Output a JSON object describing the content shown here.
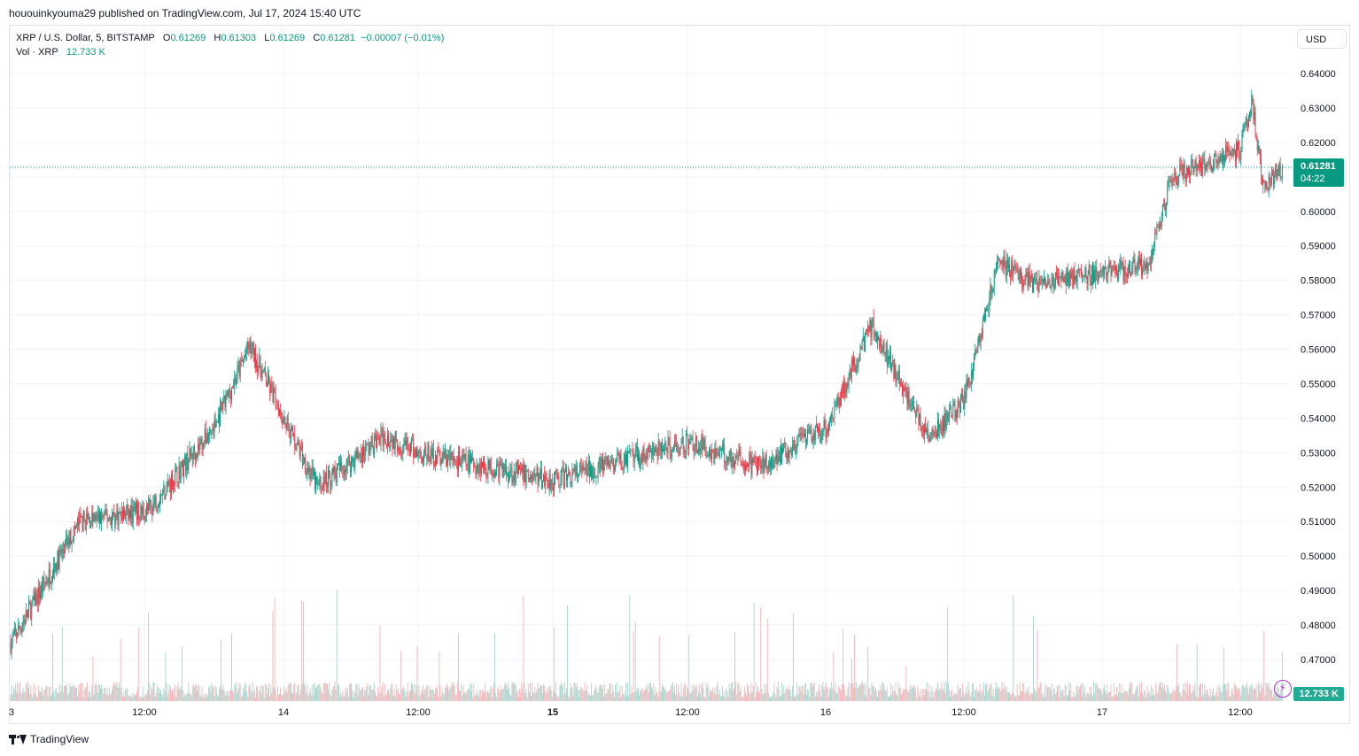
{
  "header": {
    "published_line": "hououinkyouma29 published on TradingView.com, Jul 17, 2024 15:40 UTC"
  },
  "legend": {
    "symbol": "XRP / U.S. Dollar, 5, BITSTAMP",
    "open_label": "O",
    "open_value": "0.61269",
    "high_label": "H",
    "high_value": "0.61303",
    "low_label": "L",
    "low_value": "0.61269",
    "close_label": "C",
    "close_value": "0.61281",
    "change": "−0.00007 (−0.01%)",
    "volume_label": "Vol · XRP",
    "volume_value": "12.733 K"
  },
  "currency_button": "USD",
  "last_price": {
    "value": "0.61281",
    "countdown": "04:22"
  },
  "volume_tag": "12.733 K",
  "footer": {
    "brand": "TradingView"
  },
  "colors": {
    "up": "#089981",
    "down": "#f23645",
    "up_vol": "#a8d5cd",
    "down_vol": "#f7b5b9",
    "grid": "#f0f3fa"
  },
  "chart_data": {
    "type": "candlestick",
    "title": "XRP / U.S. Dollar, 5, BITSTAMP",
    "interval": "5",
    "exchange": "BITSTAMP",
    "xlabel": "",
    "ylabel": "USD",
    "ylim": [
      0.46,
      0.645
    ],
    "y_ticks": [
      "0.64000",
      "0.63000",
      "0.62000",
      "0.61000",
      "0.60000",
      "0.59000",
      "0.58000",
      "0.57000",
      "0.56000",
      "0.55000",
      "0.54000",
      "0.53000",
      "0.52000",
      "0.51000",
      "0.50000",
      "0.49000",
      "0.48000",
      "0.47000"
    ],
    "x_ticks": [
      "3",
      "12:00",
      "14",
      "12:00",
      "15",
      "12:00",
      "16",
      "12:00",
      "17",
      "12:00"
    ],
    "x_ticks_bold": [
      "15"
    ],
    "last_price": 0.61281,
    "price_path_approx": [
      {
        "t": "Jul 13 00:00",
        "p": 0.475
      },
      {
        "t": "Jul 13 06:00",
        "p": 0.51
      },
      {
        "t": "Jul 13 12:00",
        "p": 0.513
      },
      {
        "t": "Jul 13 18:00",
        "p": 0.538
      },
      {
        "t": "Jul 13 21:00",
        "p": 0.561
      },
      {
        "t": "Jul 14 03:00",
        "p": 0.52
      },
      {
        "t": "Jul 14 09:00",
        "p": 0.535
      },
      {
        "t": "Jul 14 12:00",
        "p": 0.53
      },
      {
        "t": "Jul 15 00:00",
        "p": 0.522
      },
      {
        "t": "Jul 15 12:00",
        "p": 0.533
      },
      {
        "t": "Jul 15 18:00",
        "p": 0.526
      },
      {
        "t": "Jul 16 00:00",
        "p": 0.537
      },
      {
        "t": "Jul 16 04:00",
        "p": 0.567
      },
      {
        "t": "Jul 16 09:00",
        "p": 0.534
      },
      {
        "t": "Jul 16 12:00",
        "p": 0.545
      },
      {
        "t": "Jul 16 15:00",
        "p": 0.585
      },
      {
        "t": "Jul 16 18:00",
        "p": 0.579
      },
      {
        "t": "Jul 17 04:00",
        "p": 0.584
      },
      {
        "t": "Jul 17 06:00",
        "p": 0.61
      },
      {
        "t": "Jul 17 12:00",
        "p": 0.618
      },
      {
        "t": "Jul 17 13:00",
        "p": 0.632
      },
      {
        "t": "Jul 17 14:00",
        "p": 0.607
      },
      {
        "t": "Jul 17 15:40",
        "p": 0.61281
      }
    ]
  }
}
